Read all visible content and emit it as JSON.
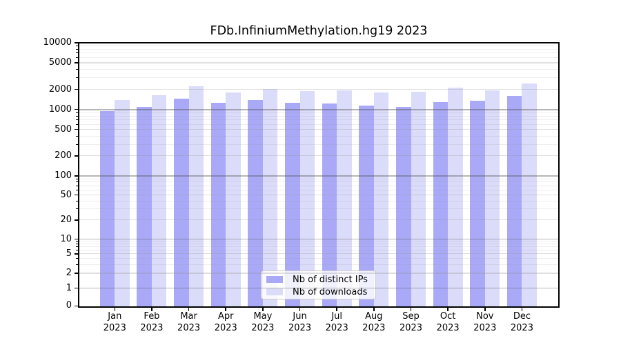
{
  "chart_data": {
    "type": "bar",
    "title": "FDb.InfiniumMethylation.hg19 2023",
    "categories": [
      "Jan 2023",
      "Feb 2023",
      "Mar 2023",
      "Apr 2023",
      "May 2023",
      "Jun 2023",
      "Jul 2023",
      "Aug 2023",
      "Sep 2023",
      "Oct 2023",
      "Nov 2023",
      "Dec 2023"
    ],
    "series": [
      {
        "name": "Nb of distinct IPs",
        "color": "#a9a9f7",
        "values": [
          950,
          1100,
          1450,
          1250,
          1400,
          1270,
          1220,
          1150,
          1100,
          1300,
          1350,
          1600
        ]
      },
      {
        "name": "Nb of downloads",
        "color": "#dbdbfa",
        "values": [
          1400,
          1650,
          2230,
          1800,
          2050,
          1870,
          1950,
          1800,
          1850,
          2150,
          1950,
          2450
        ]
      }
    ],
    "xlabel": "",
    "ylabel": "",
    "yscale": "log-like with 0 baseline",
    "ylim": [
      0,
      10000
    ],
    "y_ticks": [
      0,
      1,
      2,
      5,
      10,
      20,
      50,
      100,
      200,
      500,
      1000,
      2000,
      5000,
      10000
    ],
    "grid": "horizontal, drawn over bars",
    "legend_position": "lower center inside plot",
    "frame_color": "#000000",
    "background_color": "#ffffff"
  }
}
